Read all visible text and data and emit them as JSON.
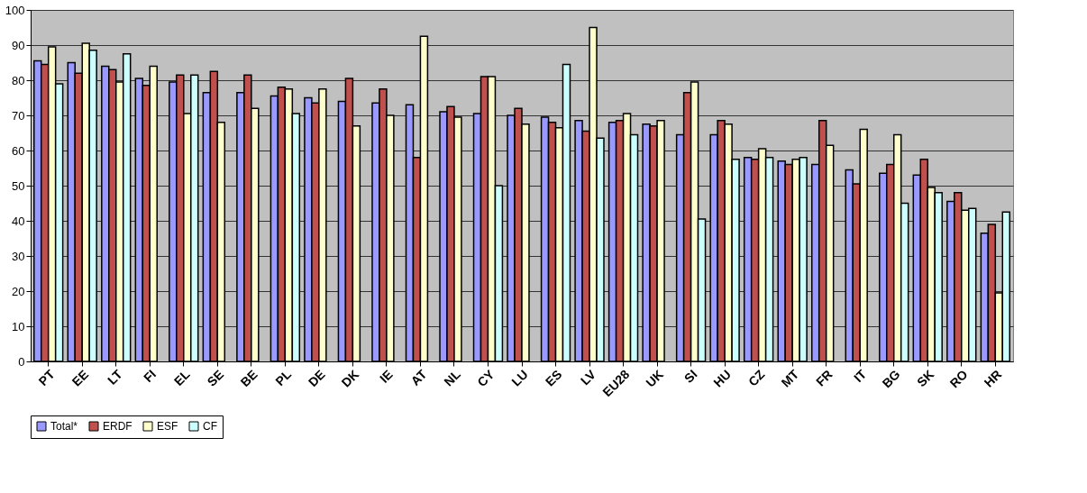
{
  "chart_data": {
    "type": "bar",
    "categories": [
      "PT",
      "EE",
      "LT",
      "FI",
      "EL",
      "SE",
      "BE",
      "PL",
      "DE",
      "DK",
      "IE",
      "AT",
      "NL",
      "CY",
      "LU",
      "ES",
      "LV",
      "EU28",
      "UK",
      "SI",
      "HU",
      "CZ",
      "MT",
      "FR",
      "IT",
      "BG",
      "SK",
      "RO",
      "HR"
    ],
    "series": [
      {
        "name": "Total*",
        "color": "#9999ff",
        "values": [
          85.5,
          85,
          84,
          80.5,
          79.5,
          76.5,
          76.5,
          75.5,
          75,
          74,
          73.5,
          73,
          71,
          70.5,
          70,
          69.5,
          68.5,
          68,
          67.5,
          64.5,
          64.5,
          58,
          57,
          56,
          54.5,
          53.5,
          53,
          45.5,
          36.5
        ]
      },
      {
        "name": "ERDF",
        "color": "#c0504d",
        "values": [
          84.5,
          82,
          83,
          78.5,
          81.5,
          82.5,
          81.5,
          78,
          73.5,
          80.5,
          77.5,
          58,
          72.5,
          81,
          72,
          68,
          65.5,
          68.5,
          67,
          76.5,
          68.5,
          57.5,
          56,
          68.5,
          50.5,
          56,
          57.5,
          48,
          39
        ]
      },
      {
        "name": "ESF",
        "color": "#ffffcc",
        "values": [
          89.5,
          90.5,
          79.5,
          84,
          70.5,
          68,
          72,
          77.5,
          77.5,
          67,
          70,
          92.5,
          69.5,
          81,
          67.5,
          66.5,
          95,
          70.5,
          68.5,
          79.5,
          67.5,
          60.5,
          57.5,
          61.5,
          66,
          64.5,
          49.5,
          43,
          19.5
        ]
      },
      {
        "name": "CF",
        "color": "#ccffff",
        "values": [
          79,
          88.5,
          87.5,
          null,
          81.5,
          null,
          null,
          70.5,
          null,
          null,
          null,
          null,
          null,
          50,
          null,
          84.5,
          63.5,
          64.5,
          null,
          40.5,
          57.5,
          58,
          58,
          null,
          null,
          45,
          48,
          43.5,
          42.5
        ]
      }
    ],
    "ylim": [
      0,
      100
    ],
    "yticks": [
      0,
      10,
      20,
      30,
      40,
      50,
      60,
      70,
      80,
      90,
      100
    ],
    "grid": "y",
    "legend": "bottom"
  }
}
